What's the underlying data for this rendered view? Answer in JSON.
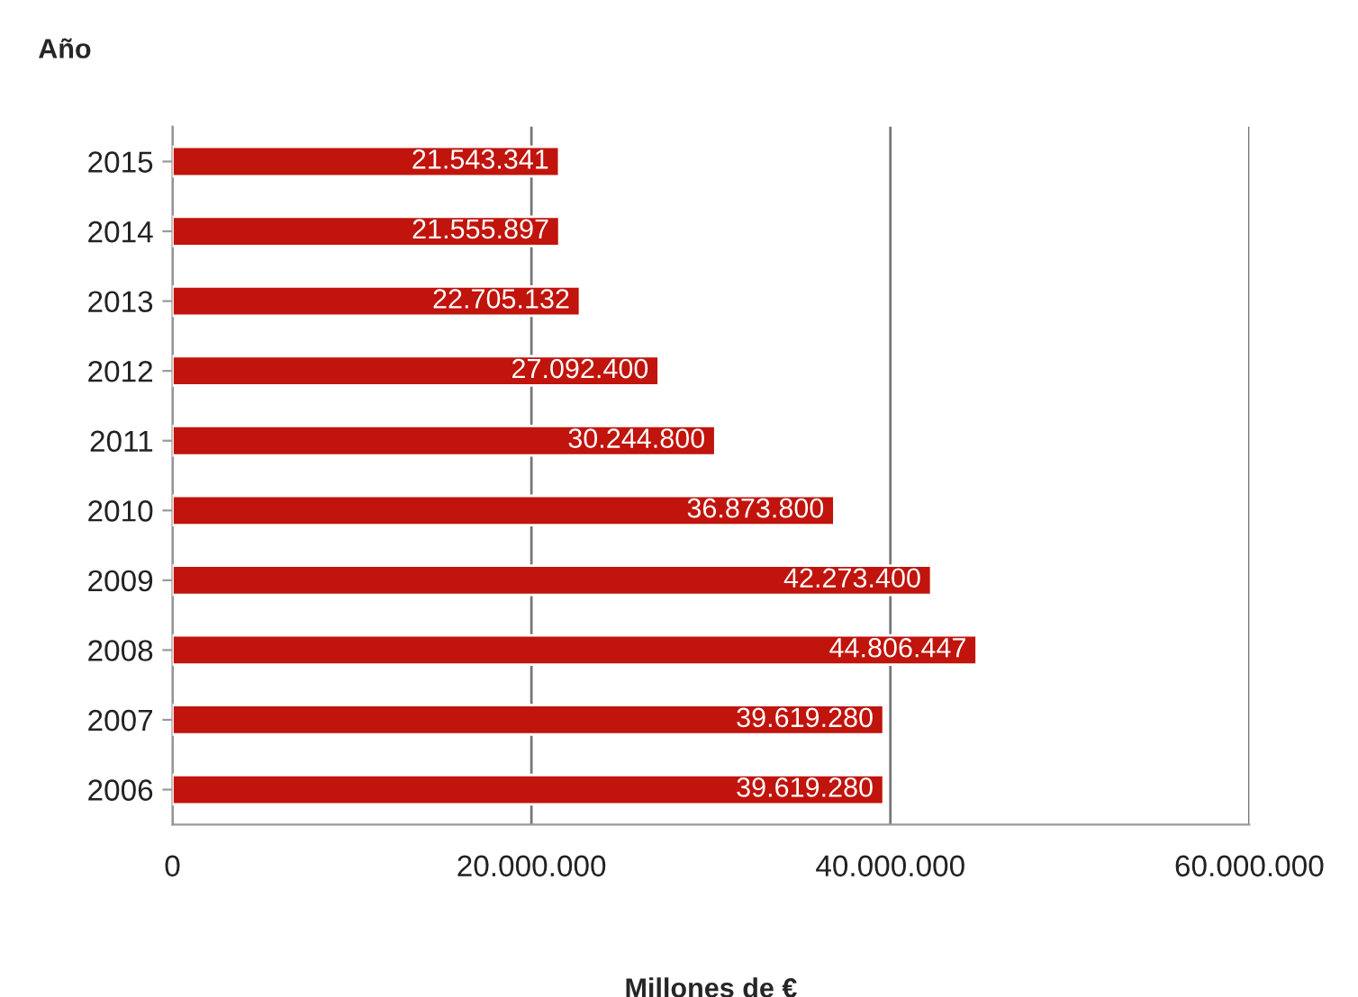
{
  "chart_data": {
    "type": "bar",
    "orientation": "horizontal",
    "ylabel": "Año",
    "xlabel": "Millones de €",
    "categories": [
      "2015",
      "2014",
      "2013",
      "2012",
      "2011",
      "2010",
      "2009",
      "2008",
      "2007",
      "2006"
    ],
    "values": [
      21543341,
      21555897,
      22705132,
      27092400,
      30244800,
      36873800,
      42273400,
      44806447,
      39619280,
      39619280
    ],
    "value_labels": [
      "21.543.341",
      "21.555.897",
      "22.705.132",
      "27.092.400",
      "30.244.800",
      "36.873.800",
      "42.273.400",
      "44.806.447",
      "39.619.280",
      "39.619.280"
    ],
    "color": "#c0140c",
    "xlim": [
      0,
      60000000
    ],
    "xticks": [
      0,
      {
        "value": 20000000,
        "label": "20.000.000"
      },
      {
        "value": 40000000,
        "label": "40.000.000"
      },
      {
        "value": 60000000,
        "label": "60.000.000"
      }
    ],
    "grid": "x"
  }
}
